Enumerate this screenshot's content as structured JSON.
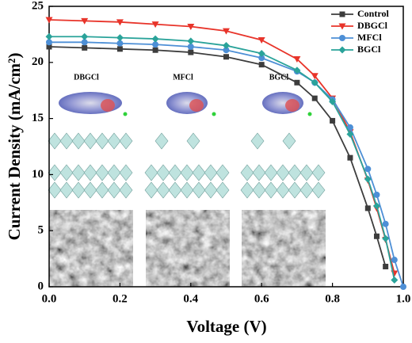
{
  "chart_data": {
    "type": "line",
    "x_label": "Voltage (V)",
    "y_label": "Current Density (mA/cm²)",
    "x": [
      0,
      0.1,
      0.2,
      0.3,
      0.4,
      0.5,
      0.6,
      0.7,
      0.75,
      0.8,
      0.85,
      0.9,
      0.925,
      0.95,
      0.975,
      1.0
    ],
    "series": [
      {
        "name": "Control",
        "color": "#3d3d3d",
        "marker": "square",
        "values": [
          21.4,
          21.3,
          21.2,
          21.1,
          20.9,
          20.5,
          19.8,
          18.2,
          16.8,
          14.8,
          11.5,
          7.0,
          4.5,
          1.8,
          null,
          null
        ]
      },
      {
        "name": "DBGCl",
        "color": "#e8342a",
        "marker": "triangle-down",
        "values": [
          23.8,
          23.7,
          23.6,
          23.4,
          23.2,
          22.8,
          22.0,
          20.3,
          18.8,
          16.8,
          13.8,
          9.5,
          7.0,
          4.2,
          1.2,
          null
        ]
      },
      {
        "name": "MFCl",
        "color": "#4d8fd6",
        "marker": "circle",
        "values": [
          21.8,
          21.8,
          21.7,
          21.6,
          21.4,
          21.1,
          20.4,
          19.2,
          18.2,
          16.7,
          14.2,
          10.5,
          8.2,
          5.6,
          2.4,
          0
        ]
      },
      {
        "name": "BGCl",
        "color": "#2aa39a",
        "marker": "diamond",
        "values": [
          22.3,
          22.3,
          22.2,
          22.1,
          21.9,
          21.5,
          20.8,
          19.3,
          18.2,
          16.5,
          13.6,
          9.6,
          7.2,
          4.3,
          0.6,
          null
        ]
      }
    ],
    "xlim": [
      0,
      1.0
    ],
    "xticks": [
      {
        "value": 0,
        "label": "0.0"
      },
      {
        "value": 0.2,
        "label": "0.2"
      },
      {
        "value": 0.4,
        "label": "0.4"
      },
      {
        "value": 0.6,
        "label": "0.6"
      },
      {
        "value": 0.8,
        "label": "0.8"
      },
      {
        "value": 1.0,
        "label": "1.0"
      }
    ],
    "ylim": [
      0,
      25
    ],
    "yticks": [
      0,
      5,
      10,
      15,
      20,
      25
    ],
    "legend": "upper-right",
    "annotations": [
      "DBGCl",
      "MFCl",
      "BGCl"
    ]
  }
}
